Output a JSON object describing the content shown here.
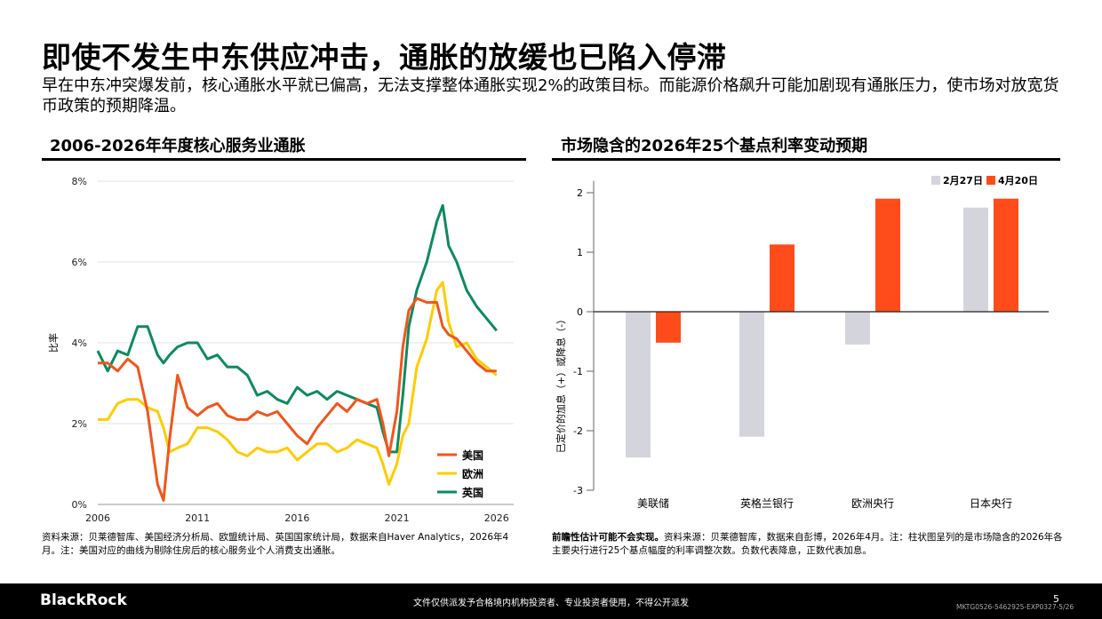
{
  "title": "即使不发生中东供应冲击，通胀的放缓也已陷入停滞",
  "subtitle": "早在中东冲突爆发前，核心通胀水平就已偏高，无法支撑整体通胀实现2%的政策目标。而能源价格飙升可能加剧现有通胀压力，使市场对放宽货币政策的预期降温。",
  "left_panel": {
    "title": "2006-2026年年度核心服务业通胀",
    "footnote": "资料来源：贝莱德智库、美国经济分析局、欧盟统计局、英国国家统计局，数据来自Haver Analytics，2026年4月。注：美国对应的曲线为剔除住房后的核心服务业个人消费支出通胀。"
  },
  "right_panel": {
    "title": "市场隐含的2026年25个基点利率变动预期",
    "footnote_bold": "前瞻性估计可能不会实现。",
    "footnote": "资料来源：贝莱德智库，数据来自彭博，2026年4月。注：柱状图呈列的是市场隐含的2026年各主要央行进行25个基点幅度的利率调整次数。负数代表降息，正数代表加息。"
  },
  "footer": {
    "logo": "BlackRock",
    "disclaimer": "文件仅供派发予合格境内机构投资者、专业投资者使用，不得公开派发",
    "page": "5",
    "code": "MKTG0526-5462925-EXP0327-5/26"
  },
  "colors": {
    "us": "#f0561d",
    "eu": "#ffcc00",
    "uk": "#0f8a5f",
    "apr": "#ff4c1a",
    "feb": "#d4d4dc"
  },
  "chart_data": [
    {
      "type": "line",
      "title": "2006-2026年年度核心服务业通胀",
      "xlabel": "",
      "ylabel": "比率",
      "xlim": [
        2006,
        2026.5
      ],
      "ylim": [
        0,
        8
      ],
      "x_ticks": [
        "2006",
        "2011",
        "2016",
        "2021",
        "2026"
      ],
      "y_ticks": [
        "0%",
        "2%",
        "4%",
        "6%",
        "8%"
      ],
      "grid": true,
      "legend_position": "bottom-right",
      "x": [
        2006,
        2006.5,
        2007,
        2007.5,
        2008,
        2008.5,
        2009,
        2009.3,
        2009.6,
        2010,
        2010.5,
        2011,
        2011.5,
        2012,
        2012.5,
        2013,
        2013.5,
        2014,
        2014.5,
        2015,
        2015.5,
        2016,
        2016.5,
        2017,
        2017.5,
        2018,
        2018.5,
        2019,
        2019.5,
        2020,
        2020.3,
        2020.6,
        2021,
        2021.3,
        2021.6,
        2022,
        2022.5,
        2023,
        2023.3,
        2023.6,
        2024,
        2024.5,
        2025,
        2025.5,
        2026
      ],
      "series": [
        {
          "name": "美国",
          "color": "#f0561d",
          "values": [
            3.5,
            3.5,
            3.3,
            3.6,
            3.4,
            2.3,
            0.5,
            0.1,
            1.6,
            3.2,
            2.4,
            2.2,
            2.4,
            2.5,
            2.2,
            2.1,
            2.1,
            2.3,
            2.2,
            2.3,
            2.0,
            1.7,
            1.5,
            1.9,
            2.2,
            2.5,
            2.3,
            2.6,
            2.5,
            2.6,
            2.0,
            1.2,
            2.3,
            3.9,
            4.8,
            5.1,
            5.0,
            5.0,
            4.4,
            4.2,
            4.1,
            3.8,
            3.5,
            3.3,
            3.3
          ]
        },
        {
          "name": "欧洲",
          "color": "#ffcc00",
          "values": [
            2.1,
            2.1,
            2.5,
            2.6,
            2.6,
            2.4,
            2.3,
            1.9,
            1.3,
            1.4,
            1.5,
            1.9,
            1.9,
            1.8,
            1.6,
            1.3,
            1.2,
            1.4,
            1.3,
            1.3,
            1.4,
            1.1,
            1.3,
            1.5,
            1.5,
            1.3,
            1.4,
            1.6,
            1.5,
            1.4,
            1.0,
            0.5,
            1.0,
            1.7,
            2.0,
            3.4,
            4.1,
            5.3,
            5.5,
            4.5,
            3.9,
            4.0,
            3.6,
            3.4,
            3.2
          ]
        },
        {
          "name": "英国",
          "color": "#0f8a5f",
          "values": [
            3.8,
            3.3,
            3.8,
            3.7,
            4.4,
            4.4,
            3.7,
            3.5,
            3.7,
            3.9,
            4.0,
            4.0,
            3.6,
            3.7,
            3.4,
            3.4,
            3.2,
            2.7,
            2.8,
            2.6,
            2.5,
            2.9,
            2.7,
            2.8,
            2.6,
            2.8,
            2.7,
            2.6,
            2.5,
            2.4,
            1.8,
            1.3,
            1.3,
            2.7,
            4.4,
            5.3,
            6.0,
            7.0,
            7.4,
            6.4,
            6.0,
            5.3,
            4.9,
            4.6,
            4.3
          ]
        }
      ]
    },
    {
      "type": "bar",
      "title": "市场隐含的2026年25个基点利率变动预期",
      "xlabel": "",
      "ylabel": "已定价的加息（+）或降息（-）",
      "ylim": [
        -3,
        2.2
      ],
      "y_ticks": [
        -3,
        -2,
        -1,
        0,
        1,
        2
      ],
      "grid": false,
      "legend_position": "top-right",
      "categories": [
        "美联储",
        "英格兰银行",
        "欧洲央行",
        "日本央行"
      ],
      "series": [
        {
          "name": "2月27日",
          "color": "#d4d4dc",
          "values": [
            -2.45,
            -2.1,
            -0.55,
            1.75
          ]
        },
        {
          "name": "4月20日",
          "color": "#ff4c1a",
          "values": [
            -0.52,
            1.13,
            1.9,
            1.9
          ]
        }
      ]
    }
  ]
}
